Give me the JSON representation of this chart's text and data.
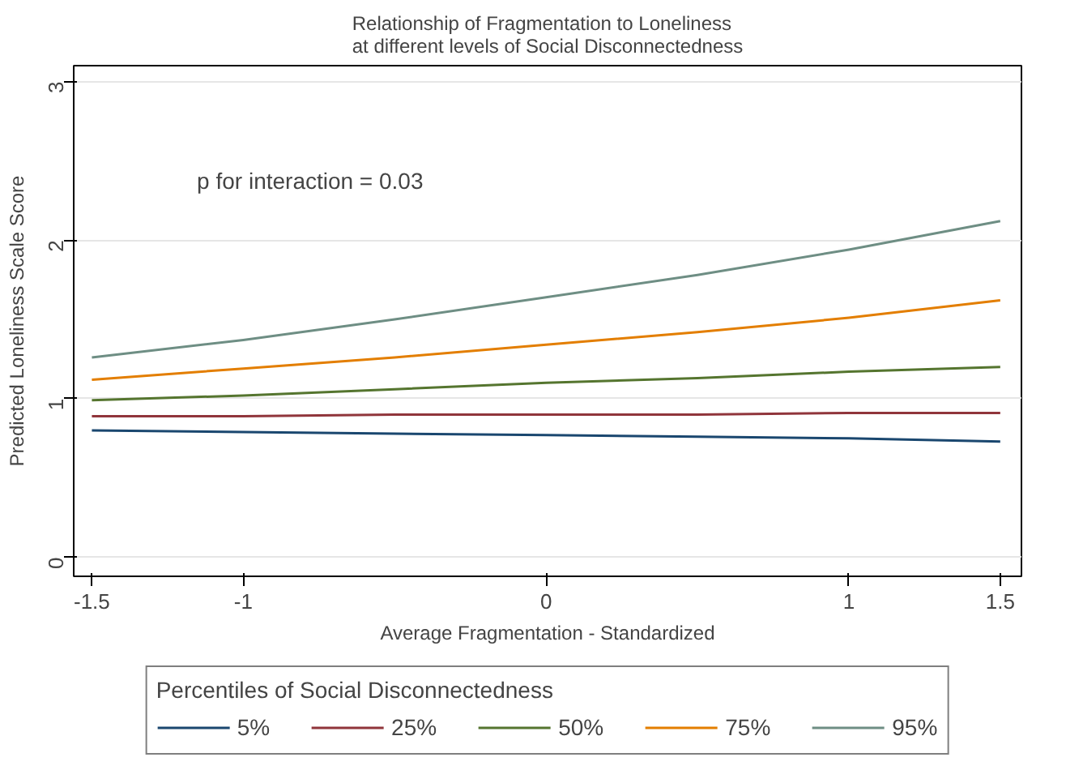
{
  "chart_data": {
    "type": "line",
    "title": "Relationship of Fragmentation to Loneliness\nat different levels of Social Disconnectedness",
    "xlabel": "Average Fragmentation - Standardized",
    "ylabel": "Predicted Loneliness Scale Score",
    "legend_title": "Percentiles of Social Disconnectedness",
    "annotations": [
      "p for interaction = 0.03"
    ],
    "x": [
      -1.5,
      -1,
      -0.5,
      0,
      0.5,
      1,
      1.5
    ],
    "series": [
      {
        "name": "5%",
        "color": "#1a476f",
        "values": [
          0.8,
          0.79,
          0.78,
          0.77,
          0.76,
          0.75,
          0.73
        ]
      },
      {
        "name": "25%",
        "color": "#90353b",
        "values": [
          0.89,
          0.89,
          0.9,
          0.9,
          0.9,
          0.91,
          0.91
        ]
      },
      {
        "name": "50%",
        "color": "#55752f",
        "values": [
          0.99,
          1.02,
          1.06,
          1.1,
          1.13,
          1.17,
          1.2
        ]
      },
      {
        "name": "75%",
        "color": "#e37e00",
        "values": [
          1.12,
          1.19,
          1.26,
          1.34,
          1.42,
          1.51,
          1.62
        ]
      },
      {
        "name": "95%",
        "color": "#6e8e84",
        "values": [
          1.26,
          1.37,
          1.5,
          1.64,
          1.78,
          1.94,
          2.12
        ]
      }
    ],
    "xlim": [
      -1.56,
      1.57
    ],
    "ylim": [
      -0.12,
      3.1
    ],
    "xticks": [
      -1.5,
      -1,
      0,
      1,
      1.5
    ],
    "yticks": [
      0,
      1,
      2,
      3
    ],
    "grid": "y",
    "legend": "bottom",
    "line_style": "solid",
    "marker": "none"
  }
}
